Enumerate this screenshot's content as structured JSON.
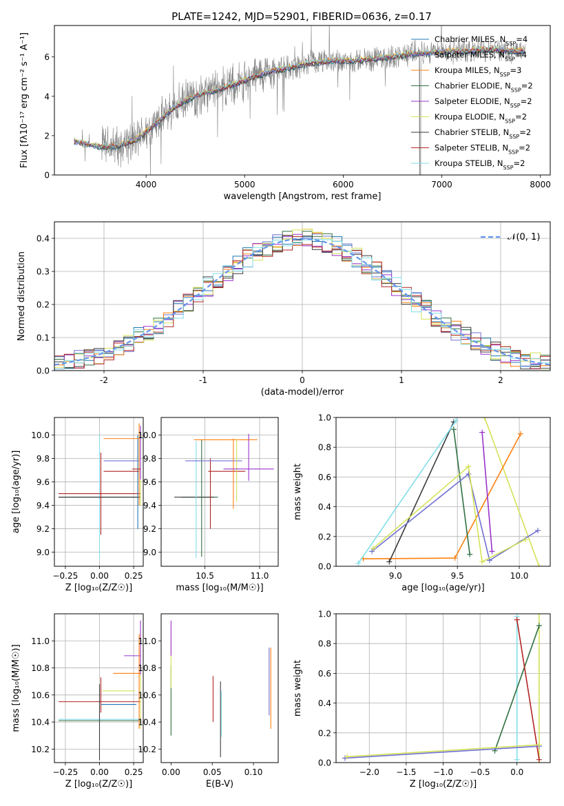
{
  "figure": {
    "title": "PLATE=1242, MJD=52901, FIBERID=0636, z=0.17"
  },
  "models": [
    {
      "name": "Chabrier MILES",
      "nssp": "4",
      "color": "#1f77b4"
    },
    {
      "name": "Salpeter MILES",
      "nssp": "4",
      "color": "#6f6fd0"
    },
    {
      "name": "Kroupa MILES",
      "nssp": "3",
      "color": "#ff7f0e"
    },
    {
      "name": "Chabrier ELODIE",
      "nssp": "2",
      "color": "#2f6f3f"
    },
    {
      "name": "Salpeter ELODIE",
      "nssp": "2",
      "color": "#9932cc"
    },
    {
      "name": "Kroupa ELODIE",
      "nssp": "2",
      "color": "#d4e157"
    },
    {
      "name": "Chabrier STELIB",
      "nssp": "2",
      "color": "#3a3a3a"
    },
    {
      "name": "Salpeter STELIB",
      "nssp": "2",
      "color": "#b22222"
    },
    {
      "name": "Kroupa STELIB",
      "nssp": "2",
      "color": "#80deea"
    }
  ],
  "legend_suffix": ", N",
  "legend_sub": "SSP",
  "legend_eq": "=",
  "chart_data": [
    {
      "id": "spectrum",
      "type": "line",
      "title": "PLATE=1242, MJD=52901, FIBERID=0636, z=0.17",
      "xlabel": "wavelength [Angstrom, rest frame]",
      "ylabel": "Flux [fλ10⁻¹⁷ erg cm⁻² s⁻¹ A⁻¹]",
      "xlim": [
        3070,
        8100
      ],
      "ylim": [
        0,
        7.6
      ],
      "xticks": [
        4000,
        5000,
        6000,
        7000,
        8000
      ],
      "yticks": [
        0,
        2,
        4,
        6
      ],
      "grid": false,
      "legend": "top-right",
      "data_color": "#808080",
      "continuum_x": [
        3270,
        3500,
        3700,
        3900,
        4100,
        4300,
        4500,
        4700,
        4900,
        5100,
        5300,
        5500,
        5700,
        5900,
        6100,
        6300,
        6500,
        6700,
        6900,
        7100,
        7300,
        7500,
        7700,
        7850
      ],
      "continuum_y": [
        1.7,
        1.45,
        1.45,
        1.8,
        2.6,
        3.5,
        4.0,
        4.3,
        4.6,
        5.0,
        5.3,
        5.5,
        5.7,
        5.8,
        5.8,
        5.9,
        6.0,
        6.15,
        6.2,
        6.3,
        6.3,
        6.4,
        6.3,
        6.3
      ]
    },
    {
      "id": "residual-histogram",
      "type": "bar",
      "xlabel": "(data-model)/error",
      "ylabel": "Normed distribution",
      "xlim": [
        -2.5,
        2.5
      ],
      "ylim": [
        0,
        0.45
      ],
      "xticks": [
        -2,
        -1,
        0,
        1,
        2
      ],
      "yticks": [
        0.0,
        0.1,
        0.2,
        0.3,
        0.4
      ],
      "grid": true,
      "legend": "top-right",
      "legend_label": "𝒩(0, 1)",
      "gauss_color": "#6495ed",
      "bin_start": -2.5,
      "bin_width": 0.1
    },
    {
      "id": "age-vs-Z",
      "type": "scatter",
      "xlabel": "Z [log₁₀(Z/Z☉)]",
      "ylabel": "age  [log₁₀(age/yr)]",
      "xlim": [
        -0.33,
        0.32
      ],
      "ylim": [
        8.88,
        10.15
      ],
      "xticks": [
        -0.25,
        0.0,
        0.25
      ],
      "xticklabels": [
        "−0.25",
        "0.00",
        "0.25"
      ],
      "yticks": [
        9.0,
        9.2,
        9.4,
        9.6,
        9.8,
        10.0
      ],
      "grid": true,
      "crosses": [
        {
          "model": 8,
          "x": 0.0,
          "xe": 0.0,
          "y": 9.47,
          "ye": 0.53
        },
        {
          "model": 3,
          "x": 0.0,
          "xe": 0.3,
          "y": 9.47,
          "ye": 0.0
        },
        {
          "model": 6,
          "x": 0.0,
          "xe": 0.3,
          "y": 9.47,
          "ye": 0.0
        },
        {
          "model": 7,
          "x": 0.0,
          "xe": 0.3,
          "y": 9.5,
          "ye": 0.0
        },
        {
          "model": 7,
          "x": 0.01,
          "xe": 0.0,
          "y": 9.5,
          "ye": 0.35
        },
        {
          "model": 0,
          "x": 0.28,
          "xe": 0.0,
          "y": 9.6,
          "ye": 0.4
        },
        {
          "model": 1,
          "x": 0.16,
          "xe": 0.13,
          "y": 9.78,
          "ye": 0.0
        },
        {
          "model": 7,
          "x": 0.16,
          "xe": 0.13,
          "y": 9.69,
          "ye": 0.0
        },
        {
          "model": 2,
          "x": 0.16,
          "xe": 0.13,
          "y": 9.97,
          "ye": 0.0
        },
        {
          "model": 2,
          "x": 0.29,
          "xe": 0.0,
          "y": 9.75,
          "ye": 0.35
        },
        {
          "model": 5,
          "x": 0.3,
          "xe": 0.0,
          "y": 9.7,
          "ye": 0.3
        },
        {
          "model": 4,
          "x": 0.3,
          "xe": 0.0,
          "y": 9.85,
          "ye": 0.23
        },
        {
          "model": 7,
          "x": 0.27,
          "xe": 0.03,
          "y": 9.71,
          "ye": 0.0
        }
      ]
    },
    {
      "id": "age-vs-mass",
      "type": "scatter",
      "xlabel": "mass [log₁₀(M/M☉)]",
      "xlim": [
        10.1,
        11.17
      ],
      "ylim": [
        8.88,
        10.15
      ],
      "xticks": [
        10.5,
        11.0
      ],
      "xticklabels": [
        "10.5",
        "11.0"
      ],
      "yticks": [
        9.0,
        9.2,
        9.4,
        9.6,
        9.8,
        10.0
      ],
      "grid": true,
      "crosses": [
        {
          "model": 3,
          "x": 10.45,
          "xe": 0.17,
          "y": 9.47,
          "ye": 0.0
        },
        {
          "model": 6,
          "x": 10.4,
          "xe": 0.18,
          "y": 9.47,
          "ye": 0.0
        },
        {
          "model": 8,
          "x": 10.42,
          "xe": 0.0,
          "y": 9.45,
          "ye": 0.5
        },
        {
          "model": 3,
          "x": 10.47,
          "xe": 0.0,
          "y": 9.46,
          "ye": 0.5
        },
        {
          "model": 7,
          "x": 10.55,
          "xe": 0.0,
          "y": 9.5,
          "ye": 0.3
        },
        {
          "model": 1,
          "x": 10.58,
          "xe": 0.26,
          "y": 9.78,
          "ye": 0.0
        },
        {
          "model": 2,
          "x": 10.69,
          "xe": 0.29,
          "y": 9.96,
          "ye": 0.0
        },
        {
          "model": 7,
          "x": 10.7,
          "xe": 0.17,
          "y": 9.69,
          "ye": 0.0
        },
        {
          "model": 2,
          "x": 10.76,
          "xe": 0.0,
          "y": 9.67,
          "ye": 0.3
        },
        {
          "model": 5,
          "x": 10.79,
          "xe": 0.0,
          "y": 9.7,
          "ye": 0.27
        },
        {
          "model": 4,
          "x": 10.9,
          "xe": 0.23,
          "y": 9.71,
          "ye": 0.0
        },
        {
          "model": 4,
          "x": 10.9,
          "xe": 0.0,
          "y": 9.81,
          "ye": 0.2
        }
      ]
    },
    {
      "id": "mass-weight-vs-age",
      "type": "line",
      "xlabel": "age  [log₁₀(age/yr)]",
      "ylabel": "mass weight",
      "xlim": [
        8.52,
        10.25
      ],
      "ylim": [
        0,
        1
      ],
      "xticks": [
        9.0,
        9.5,
        10.0
      ],
      "xticklabels": [
        "9.0",
        "9.5",
        "10.0"
      ],
      "yticks": [
        0.0,
        0.2,
        0.4,
        0.6,
        0.8,
        1.0
      ],
      "grid": true,
      "series": [
        {
          "model": 5,
          "x": [
            9.72,
            10.16
          ],
          "y": [
            1.0,
            0.0
          ]
        },
        {
          "model": 2,
          "x": [
            8.74,
            9.48,
            10.01
          ],
          "y": [
            0.05,
            0.055,
            0.89
          ]
        },
        {
          "model": 6,
          "x": [
            8.95,
            9.47
          ],
          "y": [
            0.03,
            0.97
          ]
        },
        {
          "model": 3,
          "x": [
            9.47,
            9.6
          ],
          "y": [
            0.92,
            0.08
          ]
        },
        {
          "model": 8,
          "x": [
            8.7,
            9.49
          ],
          "y": [
            0.02,
            0.98
          ]
        },
        {
          "model": 1,
          "x": [
            8.81,
            9.59,
            9.76,
            10.15
          ],
          "y": [
            0.1,
            0.62,
            0.04,
            0.24
          ]
        },
        {
          "model": 4,
          "x": [
            9.7,
            9.78
          ],
          "y": [
            0.9,
            0.1
          ]
        },
        {
          "model": 5,
          "x": [
            8.82,
            9.59,
            9.7,
            10.05
          ],
          "y": [
            0.12,
            0.67,
            0.03,
            0.18
          ]
        }
      ]
    },
    {
      "id": "mass-vs-Z",
      "type": "scatter",
      "xlabel": "Z [log₁₀(Z/Z☉)]",
      "ylabel": "mass [log₁₀(M/M☉)]",
      "xlim": [
        -0.33,
        0.32
      ],
      "ylim": [
        10.1,
        11.2
      ],
      "xticks": [
        -0.25,
        0.0,
        0.25
      ],
      "xticklabels": [
        "−0.25",
        "0.00",
        "0.25"
      ],
      "yticks": [
        10.2,
        10.4,
        10.6,
        10.8,
        11.0
      ],
      "grid": true,
      "crosses": [
        {
          "model": 7,
          "x": 0.0,
          "xe": 0.3,
          "y": 10.55,
          "ye": 0.0
        },
        {
          "model": 8,
          "x": 0.0,
          "xe": 0.3,
          "y": 10.42,
          "ye": 0.0
        },
        {
          "model": 3,
          "x": 0.0,
          "xe": 0.3,
          "y": 10.41,
          "ye": 0.0
        },
        {
          "model": 6,
          "x": 0.0,
          "xe": 0.0,
          "y": 10.4,
          "ye": 0.28
        },
        {
          "model": 7,
          "x": 0.01,
          "xe": 0.0,
          "y": 10.6,
          "ye": 0.13
        },
        {
          "model": 0,
          "x": 0.14,
          "xe": 0.13,
          "y": 10.53,
          "ye": 0.0
        },
        {
          "model": 5,
          "x": 0.14,
          "xe": 0.12,
          "y": 10.63,
          "ye": 0.0
        },
        {
          "model": 2,
          "x": 0.2,
          "xe": 0.1,
          "y": 10.76,
          "ye": 0.0
        },
        {
          "model": 4,
          "x": 0.24,
          "xe": 0.06,
          "y": 10.89,
          "ye": 0.0
        },
        {
          "model": 5,
          "x": 0.3,
          "xe": 0.0,
          "y": 10.7,
          "ye": 0.35
        },
        {
          "model": 4,
          "x": 0.3,
          "xe": 0.0,
          "y": 10.95,
          "ye": 0.2
        },
        {
          "model": 2,
          "x": 0.29,
          "xe": 0.0,
          "y": 10.7,
          "ye": 0.35
        }
      ]
    },
    {
      "id": "mass-vs-EBV",
      "type": "scatter",
      "xlabel": "E(B-V)",
      "xlim": [
        -0.012,
        0.13
      ],
      "ylim": [
        10.1,
        11.2
      ],
      "xticks": [
        0.0,
        0.05,
        0.1
      ],
      "xticklabels": [
        "0.00",
        "0.05",
        "0.10"
      ],
      "yticks": [
        10.2,
        10.4,
        10.6,
        10.8,
        11.0
      ],
      "grid": false,
      "crosses": [
        {
          "model": 3,
          "x": 0.0,
          "xe": 0.0,
          "y": 10.56,
          "ye": 0.26
        },
        {
          "model": 5,
          "x": 0.0,
          "xe": 0.0,
          "y": 10.85,
          "ye": 0.2
        },
        {
          "model": 4,
          "x": 0.0,
          "xe": 0.0,
          "y": 11.02,
          "ye": 0.13
        },
        {
          "model": 7,
          "x": 0.051,
          "xe": 0.0,
          "y": 10.57,
          "ye": 0.17
        },
        {
          "model": 6,
          "x": 0.06,
          "xe": 0.0,
          "y": 10.42,
          "ye": 0.28
        },
        {
          "model": 8,
          "x": 0.061,
          "xe": 0.0,
          "y": 10.46,
          "ye": 0.17
        },
        {
          "model": 2,
          "x": 0.121,
          "xe": 0.0,
          "y": 10.65,
          "ye": 0.3
        },
        {
          "model": 1,
          "x": 0.119,
          "xe": 0.0,
          "y": 10.7,
          "ye": 0.25
        }
      ]
    },
    {
      "id": "mass-weight-vs-Z",
      "type": "line",
      "xlabel": "Z [log₁₀(Z/Z☉)]",
      "ylabel": "mass weight",
      "xlim": [
        -2.45,
        0.45
      ],
      "ylim": [
        0,
        1
      ],
      "xticks": [
        -2.0,
        -1.5,
        -1.0,
        -0.5,
        0.0
      ],
      "xticklabels": [
        "−2.0",
        "−1.5",
        "−1.0",
        "−0.5",
        "0.0"
      ],
      "yticks": [
        0.0,
        0.2,
        0.4,
        0.6,
        0.8,
        1.0
      ],
      "grid": true,
      "series": [
        {
          "model": 5,
          "x": [
            0.3,
            0.3
          ],
          "y": [
            0.0,
            1.0
          ]
        },
        {
          "model": 8,
          "x": [
            0.0,
            0.0
          ],
          "y": [
            0.02,
            0.98
          ]
        },
        {
          "model": 3,
          "x": [
            -0.3,
            0.3
          ],
          "y": [
            0.08,
            0.92
          ]
        },
        {
          "model": 7,
          "x": [
            0.0,
            0.3
          ],
          "y": [
            0.96,
            0.02
          ]
        },
        {
          "model": 1,
          "x": [
            -2.33,
            0.3
          ],
          "y": [
            0.03,
            0.11
          ]
        },
        {
          "model": 5,
          "x": [
            -2.3,
            0.3
          ],
          "y": [
            0.04,
            0.12
          ]
        }
      ]
    }
  ]
}
